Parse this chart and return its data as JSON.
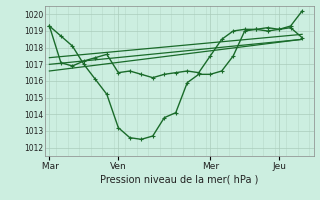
{
  "background_color": "#cceee0",
  "grid_color": "#aaccbb",
  "line_color": "#1a6b2a",
  "title": "Pression niveau de la mer( hPa )",
  "ylim": [
    1011.5,
    1020.5
  ],
  "yticks": [
    1012,
    1013,
    1014,
    1015,
    1016,
    1017,
    1018,
    1019,
    1020
  ],
  "xtick_labels": [
    " Mar",
    "Ven",
    "Mer",
    "Jeu"
  ],
  "xtick_positions": [
    0,
    3,
    7,
    10
  ],
  "xlim": [
    -0.2,
    11.5
  ],
  "vline_positions": [
    0,
    3,
    7,
    10
  ],
  "series1_x": [
    0,
    0.5,
    1.0,
    1.5,
    2.0,
    2.5,
    3.0,
    3.5,
    4.0,
    4.5,
    5.0,
    5.5,
    6.0,
    6.5,
    7.0,
    7.5,
    8.0,
    8.5,
    9.0,
    9.5,
    10.0,
    10.5,
    11.0
  ],
  "series1_y": [
    1019.3,
    1018.7,
    1018.1,
    1017.0,
    1016.1,
    1015.2,
    1013.2,
    1012.6,
    1012.5,
    1012.7,
    1013.8,
    1014.1,
    1015.9,
    1016.4,
    1016.4,
    1016.6,
    1017.5,
    1019.0,
    1019.1,
    1019.2,
    1019.1,
    1019.3,
    1020.2
  ],
  "series2_x": [
    0,
    0.5,
    1.0,
    1.5,
    2.0,
    2.5,
    3.0,
    3.5,
    4.0,
    4.5,
    5.0,
    5.5,
    6.0,
    6.5,
    7.0,
    7.5,
    8.0,
    8.5,
    9.0,
    9.5,
    10.0,
    10.5,
    11.0
  ],
  "series2_y": [
    1019.3,
    1017.1,
    1016.9,
    1017.2,
    1017.4,
    1017.6,
    1016.5,
    1016.6,
    1016.4,
    1016.2,
    1016.4,
    1016.5,
    1016.6,
    1016.5,
    1017.5,
    1018.5,
    1019.0,
    1019.1,
    1019.1,
    1019.0,
    1019.1,
    1019.2,
    1018.6
  ],
  "trend1_x": [
    0,
    11.0
  ],
  "trend1_y": [
    1017.0,
    1018.5
  ],
  "trend2_x": [
    0,
    11.0
  ],
  "trend2_y": [
    1017.4,
    1018.8
  ],
  "trend3_x": [
    0,
    11.0
  ],
  "trend3_y": [
    1016.6,
    1018.5
  ]
}
